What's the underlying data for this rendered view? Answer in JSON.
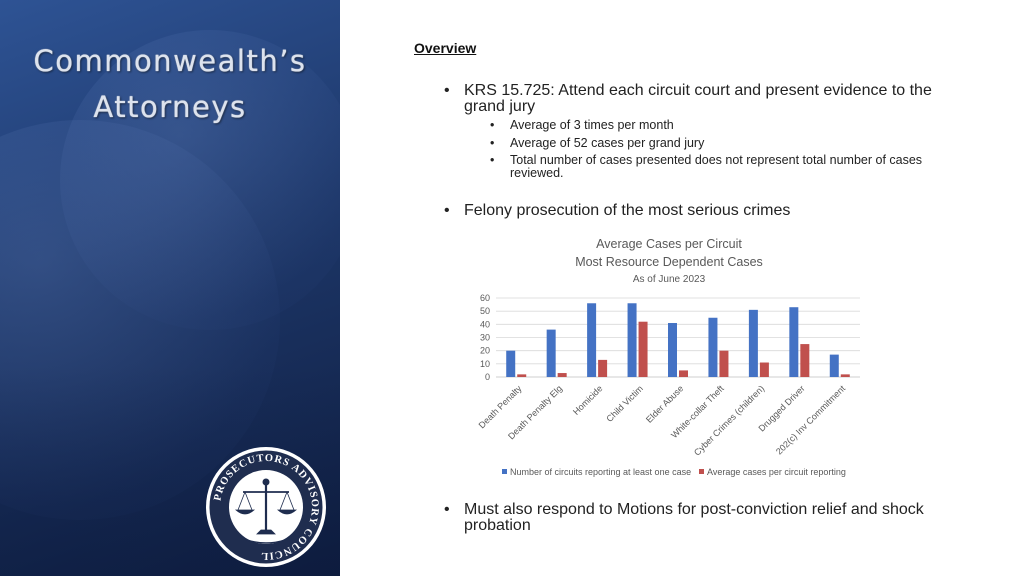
{
  "left_panel": {
    "title_line1": "Commonwealth’s",
    "title_line2": "Attorneys"
  },
  "seal": {
    "text": "PROSECUTORS ADVISORY COUNCIL"
  },
  "overview": {
    "heading": "Overview",
    "bullet1": "KRS 15.725: Attend each circuit court and present evidence to the grand jury",
    "sub_bullets": [
      "Average of 3 times per month",
      "Average of 52 cases per grand jury",
      "Total number of cases presented does not represent total number of cases reviewed."
    ],
    "bullet2": "Felony prosecution of the most serious crimes",
    "bullet3": "Must also respond to Motions for post-conviction relief and shock probation"
  },
  "chart_data": {
    "type": "bar",
    "title": "Average Cases per Circuit",
    "subtitle": "Most Resource Dependent Cases",
    "subtitle2": "As of June 2023",
    "categories": [
      "Death Penalty",
      "Death Penalty Elg",
      "Homicide",
      "Child Victim",
      "Elder Abuse",
      "White-collar Theft",
      "Cyber Crimes (children)",
      "Drugged Driver",
      "202(c) Inv Commitment"
    ],
    "series": [
      {
        "name": "Number of circuits reporting at least one case",
        "color": "#4472c4",
        "values": [
          20,
          36,
          56,
          56,
          41,
          45,
          51,
          53,
          17
        ]
      },
      {
        "name": "Average cases per circuit reporting",
        "color": "#c0504d",
        "values": [
          2,
          3,
          13,
          42,
          5,
          20,
          11,
          25,
          2
        ]
      }
    ],
    "ylim": [
      0,
      60
    ],
    "yticks": [
      0,
      10,
      20,
      30,
      40,
      50,
      60
    ],
    "grid": true,
    "legend": "bottom"
  }
}
